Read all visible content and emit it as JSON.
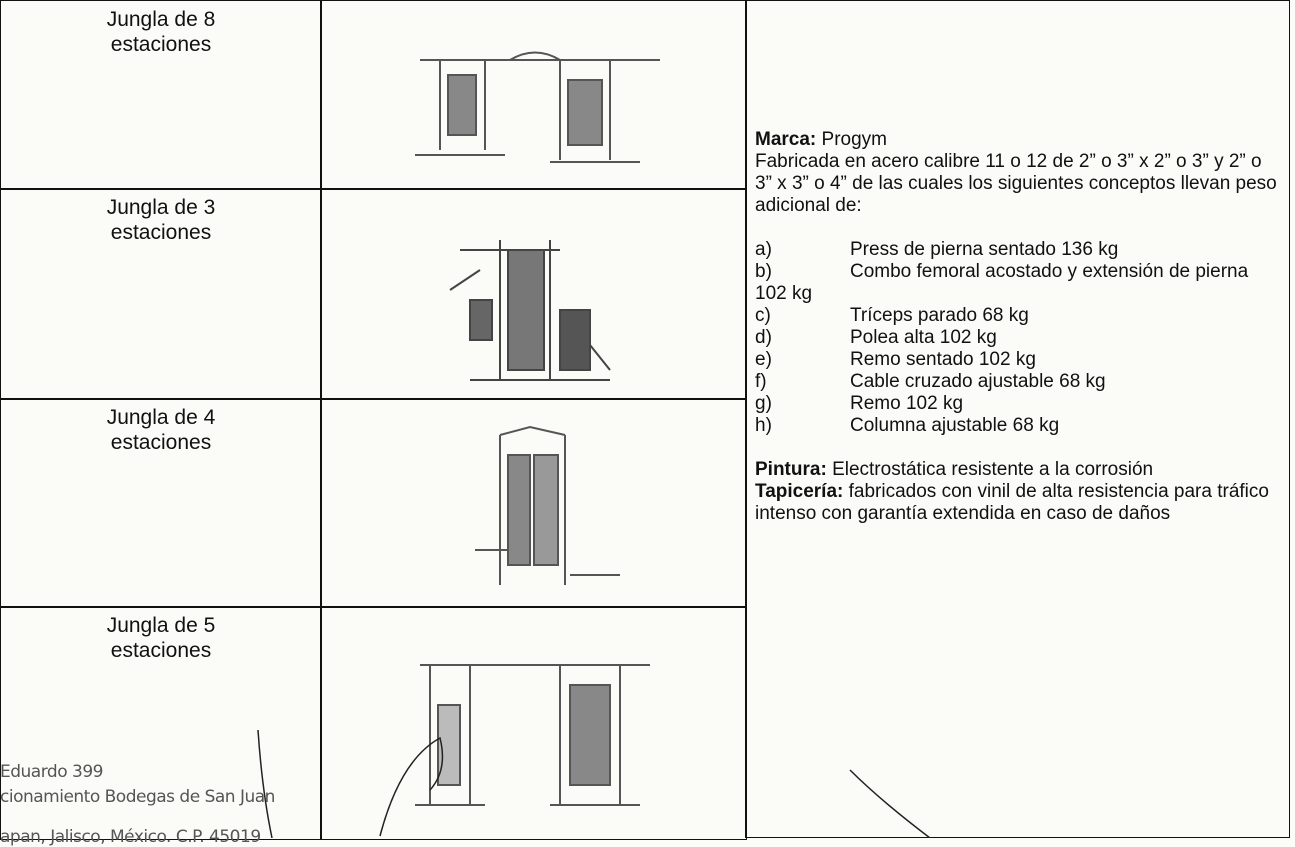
{
  "table": {
    "rows": [
      {
        "name_line1": "Jungla de 8",
        "name_line2": "estaciones"
      },
      {
        "name_line1": "Jungla de 3",
        "name_line2": "estaciones"
      },
      {
        "name_line1": "Jungla de 4",
        "name_line2": "estaciones"
      },
      {
        "name_line1": "Jungla de 5",
        "name_line2": "estaciones"
      }
    ],
    "description": {
      "marca_label": "Marca:",
      "marca": "Progym",
      "intro": "Fabricada en acero calibre 11 o 12 de 2” o 3” x 2” o 3” y 2” o 3” x 3” o 4” de las cuales los siguientes conceptos llevan peso adicional de:",
      "items": [
        {
          "letter": "a)",
          "text": "Press de pierna sentado 136 kg"
        },
        {
          "letter": "b)",
          "text": "Combo femoral acostado y extensión de pierna 102 kg"
        },
        {
          "letter": "c)",
          "text": "Tríceps parado 68 kg"
        },
        {
          "letter": "d)",
          "text": "Polea alta 102 kg"
        },
        {
          "letter": "e)",
          "text": "Remo sentado 102 kg"
        },
        {
          "letter": "f)",
          "text": "Cable cruzado ajustable 68 kg"
        },
        {
          "letter": "g)",
          "text": "Remo 102 kg"
        },
        {
          "letter": "h)",
          "text": "Columna ajustable 68 kg"
        }
      ],
      "pintura_label": "Pintura:",
      "pintura": "Electrostática resistente a la corrosión",
      "tapiceria_label": "Tapicería:",
      "tapiceria": "fabricados con vinil de alta resistencia para tráfico intenso con garantía extendida en caso de daños"
    }
  },
  "footer": {
    "lines": [
      "Eduardo 399",
      "cionamiento Bodegas de San Juan",
      "apan, Jalisco, México. C.P. 45019"
    ]
  }
}
